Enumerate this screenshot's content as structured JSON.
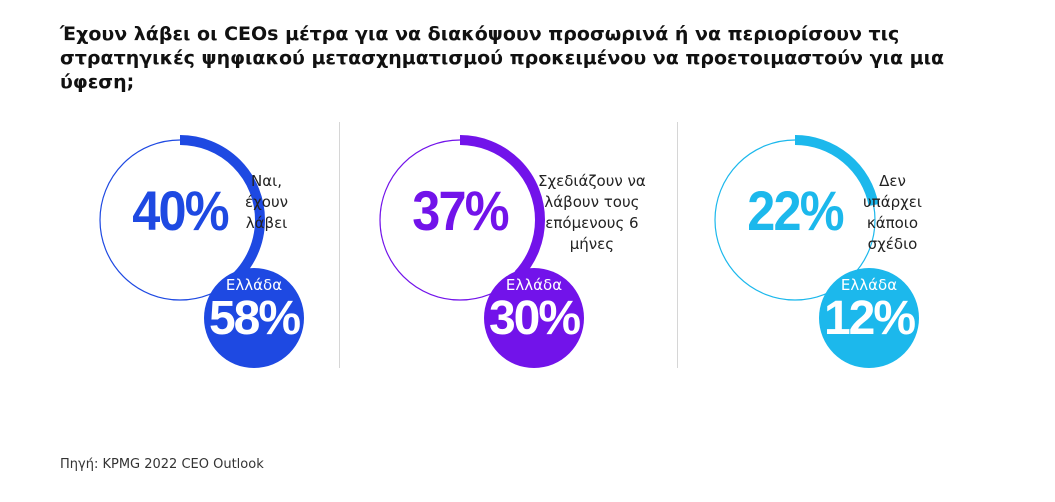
{
  "chart_data": {
    "type": "pie",
    "title": "Έχουν λάβει οι CEOs μέτρα για να διακόψουν προσωρινά ή να περιορίσουν τις στρατηγικές ψηφιακού μετασχηματισμού προκειμένου να προετοιμαστούν για μια ύφεση;",
    "series": [
      {
        "label": "Ναι,\nέχουν\nλάβει",
        "value": 40,
        "value_label": "40%",
        "greece_label": "Ελλάδα",
        "greece_value": 58,
        "greece_value_label": "58%",
        "color": "#1e49e2"
      },
      {
        "label": "Σχεδιάζουν να\nλάβουν τους\nεπόμενους 6\nμήνες",
        "value": 37,
        "value_label": "37%",
        "greece_label": "Ελλάδα",
        "greece_value": 30,
        "greece_value_label": "30%",
        "color": "#7213ea"
      },
      {
        "label": "Δεν\nυπάρχει\nκάποιο\nσχέδιο",
        "value": 22,
        "value_label": "22%",
        "greece_label": "Ελλάδα",
        "greece_value": 12,
        "greece_value_label": "12%",
        "color": "#1cb8ec"
      }
    ],
    "source": "Πηγή: KPMG 2022 CEO Outlook"
  }
}
